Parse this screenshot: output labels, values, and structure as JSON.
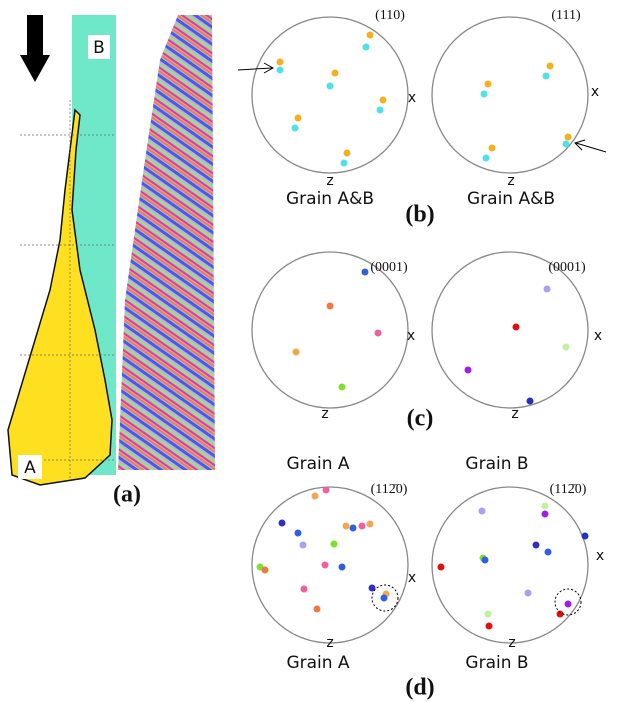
{
  "panel_a": {
    "label_b": "B",
    "label_a": "A",
    "caption": "(a)"
  },
  "panel_b": {
    "caption": "(b)",
    "plots": [
      {
        "plane": "(110)",
        "x": "x",
        "z": "z",
        "grain": "Grain A&B"
      },
      {
        "plane": "(111)",
        "x": "x",
        "z": "z",
        "grain": "Grain A&B"
      }
    ]
  },
  "panel_c": {
    "caption": "(c)",
    "plots": [
      {
        "plane": "(0001)",
        "x": "x",
        "z": "z"
      },
      {
        "plane": "(0001)",
        "x": "x",
        "z": "z"
      }
    ]
  },
  "panel_d": {
    "caption": "(d)",
    "plots": [
      {
        "top": "Grain A",
        "plane": "(112̄0)",
        "x": "x",
        "z": "z",
        "bottom": "Grain A"
      },
      {
        "top": "Grain B",
        "plane": "(112̄0)",
        "x": "x",
        "z": "z",
        "bottom": "Grain B"
      }
    ]
  }
}
